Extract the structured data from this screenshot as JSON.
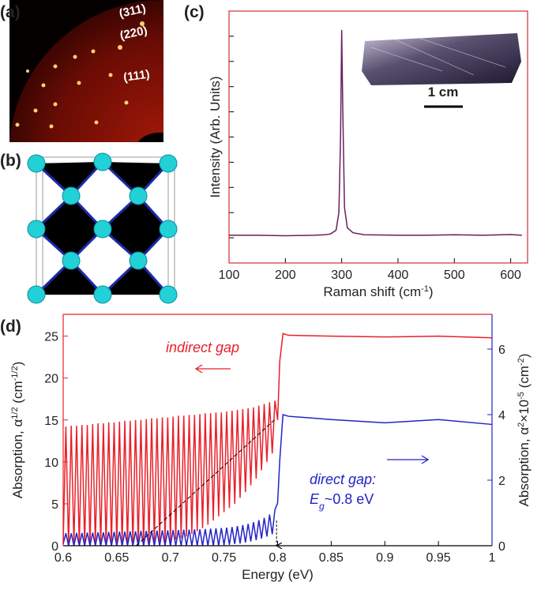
{
  "panel_labels": [
    "(a)",
    "(b)",
    "(c)",
    "(d)"
  ],
  "diffraction": {
    "labels": [
      "(311)",
      "(220)",
      "(111)"
    ]
  },
  "photo": {
    "scale_label": "1 cm"
  },
  "chart_data": [
    {
      "type": "line",
      "x": [
        100,
        150,
        200,
        250,
        270,
        280,
        290,
        295,
        298,
        300,
        302,
        305,
        310,
        320,
        340,
        400,
        450,
        500,
        550,
        600,
        620
      ],
      "series": [
        {
          "color": "#6b1f5e",
          "values": [
            0.11,
            0.11,
            0.108,
            0.11,
            0.112,
            0.115,
            0.13,
            0.2,
            0.5,
            0.925,
            0.6,
            0.22,
            0.14,
            0.12,
            0.112,
            0.11,
            0.11,
            0.112,
            0.11,
            0.113,
            0.11
          ]
        }
      ],
      "xlim": [
        100,
        630
      ],
      "xticks": [
        100,
        200,
        300,
        400,
        500,
        600
      ],
      "ylim": [
        0,
        1
      ],
      "yticks": [
        0.1,
        0.2,
        0.3,
        0.4,
        0.5,
        0.6,
        0.7,
        0.8,
        0.9
      ],
      "xlabel": [
        "Raman shift (cm",
        "-1",
        ")"
      ],
      "ylabel": [
        "Intensity (Arb. Units)"
      ],
      "frame_color": "#d03030"
    },
    {
      "type": "line",
      "x": [
        0.6,
        0.6025,
        0.605,
        0.6075,
        0.61,
        0.6125,
        0.615,
        0.6175,
        0.62,
        0.6225,
        0.625,
        0.6275,
        0.63,
        0.6325,
        0.635,
        0.6375,
        0.64,
        0.6425,
        0.645,
        0.6475,
        0.65,
        0.6525,
        0.655,
        0.6575,
        0.66,
        0.6625,
        0.665,
        0.6675,
        0.67,
        0.6725,
        0.675,
        0.6775,
        0.68,
        0.6825,
        0.685,
        0.6875,
        0.69,
        0.6925,
        0.695,
        0.6975,
        0.7,
        0.7025,
        0.705,
        0.7075,
        0.71,
        0.7125,
        0.715,
        0.7175,
        0.72,
        0.7225,
        0.725,
        0.7275,
        0.73,
        0.7325,
        0.735,
        0.7375,
        0.74,
        0.7425,
        0.745,
        0.7475,
        0.75,
        0.7525,
        0.755,
        0.7575,
        0.76,
        0.7625,
        0.765,
        0.7675,
        0.77,
        0.7725,
        0.775,
        0.7775,
        0.78,
        0.7825,
        0.785,
        0.7875,
        0.79,
        0.7925,
        0.795,
        0.7975,
        0.8,
        0.802,
        0.805,
        0.81,
        0.85,
        0.9,
        0.95,
        1
      ],
      "series": [
        {
          "color": "#e8202a",
          "axis": "y",
          "values": [
            0.2,
            14.2,
            0,
            14.3,
            0,
            14.3,
            0,
            14.4,
            0,
            14.4,
            0,
            14.5,
            0,
            14.6,
            0,
            14.6,
            0,
            14.7,
            0,
            14.7,
            0,
            14.8,
            0,
            14.9,
            0,
            14.9,
            0,
            15,
            0.1,
            15,
            0.1,
            15.1,
            0.2,
            15.2,
            0.3,
            15.2,
            0.3,
            15.3,
            0.4,
            15.3,
            0.5,
            15.4,
            0.7,
            15.5,
            0.9,
            15.5,
            1.1,
            15.6,
            1.4,
            15.6,
            1.7,
            15.7,
            2.1,
            15.8,
            2.5,
            15.8,
            3,
            15.9,
            3.5,
            15.9,
            4,
            16,
            4.5,
            16.1,
            5,
            16.2,
            5.7,
            16.3,
            6.4,
            16.4,
            7.2,
            16.5,
            8,
            16.7,
            9,
            16.9,
            10,
            17.1,
            11,
            17.3,
            15,
            22,
            25.3,
            25.1,
            25,
            24.9,
            25,
            24.8
          ]
        },
        {
          "color": "#2323c8",
          "axis": "y2",
          "values": [
            0.05,
            0.38,
            0,
            0.38,
            0,
            0.39,
            0,
            0.39,
            0,
            0.4,
            0,
            0.4,
            0,
            0.41,
            0,
            0.41,
            0,
            0.42,
            0,
            0.42,
            0,
            0.43,
            0,
            0.43,
            0,
            0.44,
            0,
            0.44,
            0,
            0.45,
            0,
            0.45,
            0,
            0.46,
            0,
            0.46,
            0,
            0.47,
            0,
            0.47,
            0,
            0.48,
            0,
            0.48,
            0,
            0.49,
            0,
            0.49,
            0,
            0.5,
            0,
            0.5,
            0,
            0.51,
            0,
            0.52,
            0,
            0.53,
            0,
            0.54,
            0.02,
            0.55,
            0.03,
            0.57,
            0.05,
            0.6,
            0.07,
            0.63,
            0.1,
            0.67,
            0.13,
            0.72,
            0.17,
            0.78,
            0.22,
            0.85,
            0.28,
            0.95,
            0.35,
            1.1,
            1.3,
            2.6,
            4,
            3.95,
            3.85,
            3.75,
            3.85,
            3.7
          ]
        }
      ],
      "xlim": [
        0.6,
        1
      ],
      "xticks": [
        0.6,
        0.65,
        0.7,
        0.75,
        0.8,
        0.85,
        0.9,
        0.95,
        1
      ],
      "ylim": [
        0,
        27.6
      ],
      "yticks": [
        0,
        5,
        10,
        15,
        20,
        25
      ],
      "y2lim": [
        0,
        7.06
      ],
      "y2ticks": [
        0,
        2,
        4,
        6
      ],
      "xlabel": [
        "Energy (eV)"
      ],
      "ylabel": [
        "Absorption, α",
        "1/2",
        " (cm",
        "-1/2",
        ")"
      ],
      "y2label": [
        "Absorption, α",
        "2",
        "×10",
        "-5",
        " (cm",
        "-2",
        ")"
      ],
      "annotations": {
        "indirect": "indirect gap",
        "direct": "direct gap:",
        "eg": [
          "E",
          "g",
          "~0.8 eV"
        ]
      },
      "tangent": {
        "x": [
          0.668,
          0.797
        ],
        "values": [
          0,
          15
        ]
      },
      "gap_arrow": {
        "x": [
          0.799,
          0.799
        ],
        "values": [
          3,
          0
        ]
      }
    }
  ]
}
